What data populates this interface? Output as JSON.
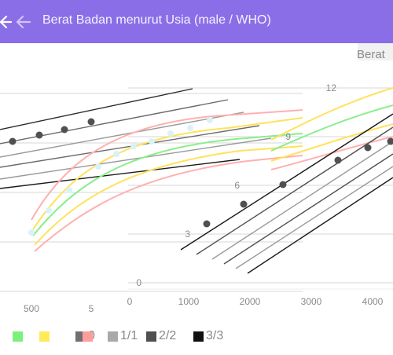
{
  "appbar": {
    "title": "Berat Badan menurut Usia (male / WHO)",
    "back_icon": "arrow-left-icon",
    "background": "#8a6ee8"
  },
  "chart": {
    "ghost_ylabel": "Berat",
    "icon_on_right": "bookmark-icon"
  },
  "chart_data": {
    "type": "line",
    "ylabel": "Berat",
    "y_ticks": [
      "0",
      "3",
      "6",
      "9",
      "12"
    ],
    "x_ticks_right": [
      "0",
      "1000",
      "2000",
      "3000",
      "4000"
    ],
    "x_ticks_left": [
      "500",
      "5"
    ],
    "legend": [
      {
        "label": "",
        "color": "#7cf07c"
      },
      {
        "label": "",
        "color": "#ffea5a"
      },
      {
        "label": "0",
        "color": "#ff9c9c"
      },
      {
        "label": "1/1",
        "color": "#a9a9a9"
      },
      {
        "label": "2/2",
        "color": "#505050"
      },
      {
        "label": "3/3",
        "color": "#111111"
      }
    ],
    "percentile_colors": {
      "green": "#8aee8a",
      "yellow": "#ffe25a",
      "pink": "#ffb0b0",
      "grey": "#b9b9b9",
      "dark": "#404040",
      "black": "#1a1a1a"
    }
  }
}
